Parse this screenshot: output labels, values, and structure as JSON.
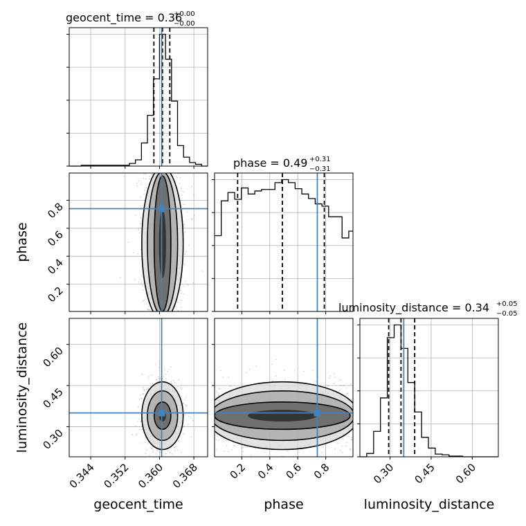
{
  "colors": {
    "truth": "#4682b4",
    "hist_line": "#000000",
    "grid": "#b0b0b0",
    "points": "#808080"
  },
  "panel_titles": [
    {
      "param": "geocent_time",
      "text": "geocent_time = 0.36",
      "sup": "+0.00",
      "sub": "−0.00"
    },
    {
      "param": "phase",
      "text": "phase = 0.49",
      "sup": "+0.31",
      "sub": "−0.31"
    },
    {
      "param": "luminosity_distance",
      "text": "luminosity_distance = 0.34",
      "sup": "+0.05",
      "sub": "−0.05"
    }
  ],
  "chart_data": {
    "type": "corner",
    "parameters": [
      "geocent_time",
      "phase",
      "luminosity_distance"
    ],
    "axis_labels": {
      "geocent_time": "geocent_time",
      "phase": "phase",
      "luminosity_distance": "luminosity_distance"
    },
    "ranges": {
      "geocent_time": [
        0.339,
        0.3712
      ],
      "phase": [
        0.005,
        0.995
      ],
      "luminosity_distance": [
        0.19,
        0.695
      ]
    },
    "ticks": {
      "geocent_time": [
        {
          "v": 0.344,
          "label": "0.344"
        },
        {
          "v": 0.352,
          "label": "0.352"
        },
        {
          "v": 0.36,
          "label": "0.360"
        },
        {
          "v": 0.368,
          "label": "0.368"
        }
      ],
      "phase": [
        {
          "v": 0.2,
          "label": "0.2"
        },
        {
          "v": 0.4,
          "label": "0.4"
        },
        {
          "v": 0.6,
          "label": "0.6"
        },
        {
          "v": 0.8,
          "label": "0.8"
        }
      ],
      "luminosity_distance": [
        {
          "v": 0.3,
          "label": "0.30"
        },
        {
          "v": 0.45,
          "label": "0.45"
        },
        {
          "v": 0.6,
          "label": "0.60"
        }
      ]
    },
    "truths": {
      "geocent_time": 0.3605,
      "phase": 0.74,
      "luminosity_distance": 0.35
    },
    "quantiles": {
      "geocent_time": [
        0.3587,
        0.3607,
        0.3624
      ],
      "phase": [
        0.17,
        0.49,
        0.79
      ],
      "luminosity_distance": [
        0.295,
        0.34,
        0.39
      ]
    },
    "histograms": {
      "geocent_time": {
        "edges": [
          0.339,
          0.3404,
          0.3418,
          0.3432,
          0.3446,
          0.346,
          0.3474,
          0.3488,
          0.3502,
          0.3516,
          0.353,
          0.3544,
          0.3558,
          0.3572,
          0.3586,
          0.36,
          0.3614,
          0.3628,
          0.3642,
          0.3656,
          0.367,
          0.3684,
          0.3698,
          0.3712
        ],
        "counts": [
          0,
          0,
          1,
          1,
          1,
          1,
          1,
          1,
          1,
          1,
          3,
          7,
          26,
          57,
          98,
          148,
          120,
          73,
          23,
          10,
          4,
          2,
          0
        ]
      },
      "phase": {
        "edges": [
          0.005,
          0.053,
          0.101,
          0.149,
          0.197,
          0.245,
          0.293,
          0.341,
          0.389,
          0.437,
          0.485,
          0.533,
          0.581,
          0.629,
          0.677,
          0.725,
          0.773,
          0.821,
          0.869,
          0.917,
          0.965,
          0.995
        ],
        "counts": [
          100,
          146,
          157,
          148,
          163,
          155,
          159,
          161,
          161,
          170,
          174,
          170,
          162,
          155,
          149,
          142,
          139,
          125,
          125,
          97,
          106
        ]
      },
      "luminosity_distance": {
        "edges": [
          0.19,
          0.215,
          0.24,
          0.265,
          0.29,
          0.315,
          0.34,
          0.365,
          0.39,
          0.415,
          0.44,
          0.465,
          0.49,
          0.515,
          0.54,
          0.565,
          0.59,
          0.615,
          0.64,
          0.665,
          0.695
        ],
        "counts": [
          0,
          5,
          38,
          88,
          178,
          197,
          162,
          111,
          67,
          29,
          13,
          4,
          3,
          1,
          1,
          0,
          0,
          0,
          0,
          0
        ]
      }
    },
    "pairs": [
      {
        "x": "geocent_time",
        "y": "phase"
      },
      {
        "x": "geocent_time",
        "y": "luminosity_distance"
      },
      {
        "x": "phase",
        "y": "luminosity_distance"
      }
    ],
    "contour_levels": [
      "39.3%",
      "86.5%",
      "98.9%"
    ],
    "grid": true
  }
}
